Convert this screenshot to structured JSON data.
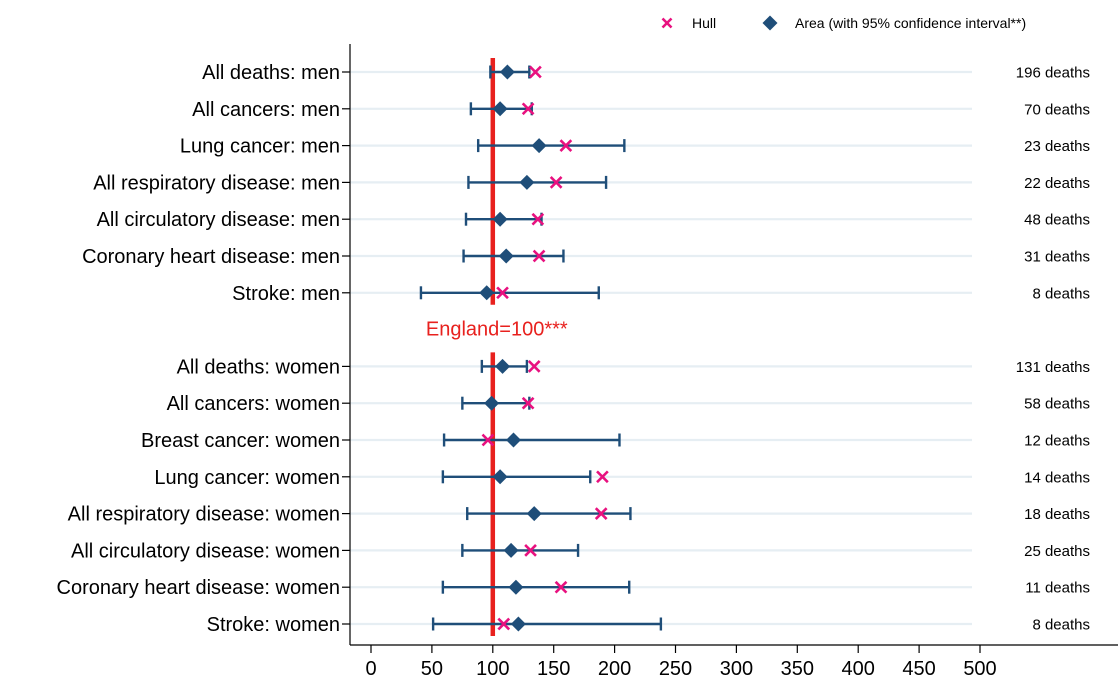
{
  "chart_data": {
    "type": "scatter",
    "orientation": "horizontal",
    "xlim": [
      0,
      500
    ],
    "xticks": [
      0,
      50,
      100,
      150,
      200,
      250,
      300,
      350,
      400,
      450,
      500
    ],
    "reference_line": {
      "value": 100,
      "label": "England=100***",
      "color": "#e8211e"
    },
    "legend": {
      "placement": "top-right",
      "items": [
        {
          "label": "Hull",
          "marker": "x-icon",
          "color": "#e8117f"
        },
        {
          "label": "Area (with 95% confidence interval**)",
          "marker": "diamond-icon",
          "color": "#1f4e79"
        }
      ]
    },
    "series": [
      {
        "name": "Hull",
        "marker": "x",
        "color": "#e8117f"
      },
      {
        "name": "Area (with 95% confidence interval**)",
        "marker": "diamond",
        "color": "#1f4e79"
      }
    ],
    "groups": [
      {
        "rows": [
          {
            "label": "All deaths: men",
            "deaths": "196 deaths",
            "area": 112,
            "lower": 98,
            "upper": 130,
            "hull": 135
          },
          {
            "label": "All cancers: men",
            "deaths": "70 deaths",
            "area": 106,
            "lower": 82,
            "upper": 132,
            "hull": 129
          },
          {
            "label": "Lung cancer: men",
            "deaths": "23 deaths",
            "area": 138,
            "lower": 88,
            "upper": 208,
            "hull": 160
          },
          {
            "label": "All respiratory disease: men",
            "deaths": "22 deaths",
            "area": 128,
            "lower": 80,
            "upper": 193,
            "hull": 152
          },
          {
            "label": "All circulatory disease: men",
            "deaths": "48 deaths",
            "area": 106,
            "lower": 78,
            "upper": 140,
            "hull": 137
          },
          {
            "label": "Coronary heart disease: men",
            "deaths": "31 deaths",
            "area": 111,
            "lower": 76,
            "upper": 158,
            "hull": 138
          },
          {
            "label": "Stroke: men",
            "deaths": "8 deaths",
            "area": 95,
            "lower": 41,
            "upper": 187,
            "hull": 108
          }
        ]
      },
      {
        "rows": [
          {
            "label": "All deaths: women",
            "deaths": "131 deaths",
            "area": 108,
            "lower": 91,
            "upper": 128,
            "hull": 134
          },
          {
            "label": "All cancers: women",
            "deaths": "58 deaths",
            "area": 99,
            "lower": 75,
            "upper": 130,
            "hull": 129
          },
          {
            "label": "Breast cancer: women",
            "deaths": "12 deaths",
            "area": 117,
            "lower": 60,
            "upper": 204,
            "hull": 96
          },
          {
            "label": "Lung cancer: women",
            "deaths": "14 deaths",
            "area": 106,
            "lower": 59,
            "upper": 180,
            "hull": 190
          },
          {
            "label": "All respiratory disease: women",
            "deaths": "18 deaths",
            "area": 134,
            "lower": 79,
            "upper": 213,
            "hull": 189
          },
          {
            "label": "All circulatory disease: women",
            "deaths": "25 deaths",
            "area": 115,
            "lower": 75,
            "upper": 170,
            "hull": 131
          },
          {
            "label": "Coronary heart disease: women",
            "deaths": "11 deaths",
            "area": 119,
            "lower": 59,
            "upper": 212,
            "hull": 156
          },
          {
            "label": "Stroke: women",
            "deaths": "8 deaths",
            "area": 121,
            "lower": 51,
            "upper": 238,
            "hull": 109
          }
        ]
      }
    ]
  }
}
